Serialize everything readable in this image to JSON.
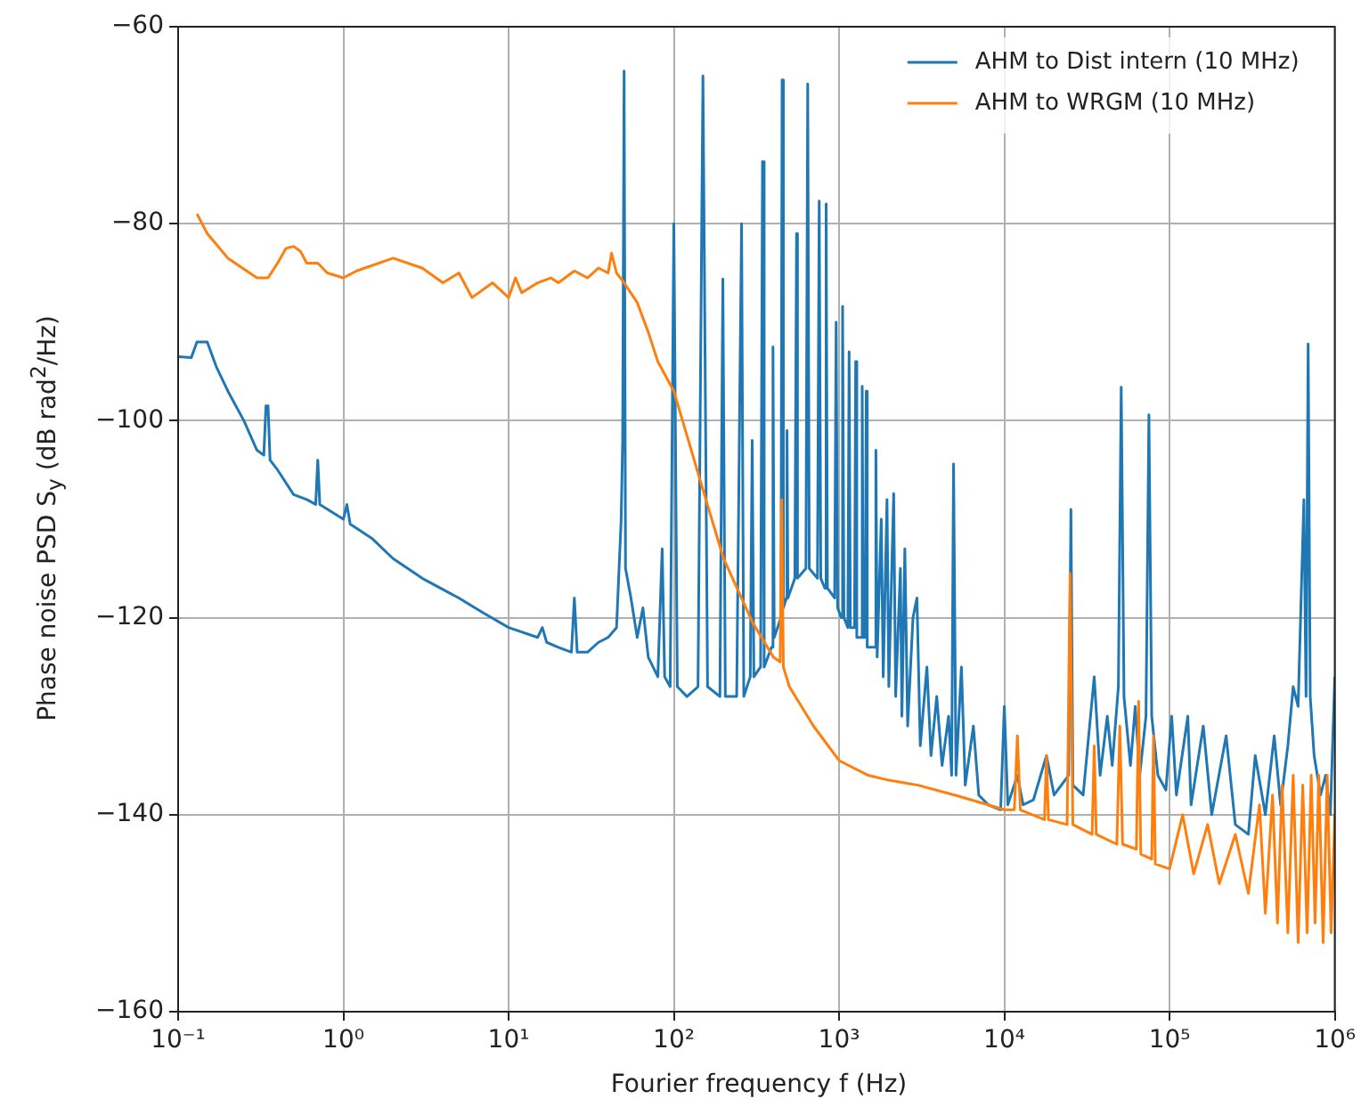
{
  "chart_data": {
    "type": "line",
    "xlabel": "Fourier frequency f (Hz)",
    "ylabel": "Phase noise PSD S$_{y}$ (dB rad$^{2}$/Hz)",
    "log": "x",
    "grid": true,
    "legend": "top right",
    "marker": "none",
    "line_style": "solid",
    "xlim": [
      0.1,
      1000000
    ],
    "xticks": [
      {
        "value": 0.1,
        "label": "10⁻¹"
      },
      {
        "value": 1,
        "label": "10⁰"
      },
      {
        "value": 10,
        "label": "10¹"
      },
      {
        "value": 100,
        "label": "10²"
      },
      {
        "value": 1000,
        "label": "10³"
      },
      {
        "value": 10000,
        "label": "10⁴"
      },
      {
        "value": 100000,
        "label": "10⁵"
      },
      {
        "value": 1000000,
        "label": "10⁶"
      }
    ],
    "ylim": [
      -160,
      -60
    ],
    "yticks": [
      -160,
      -140,
      -120,
      -100,
      -80,
      -60
    ],
    "series": [
      {
        "name": "AHM to Dist intern (10 MHz)",
        "color": "#1f77b4",
        "x": [
          0.1,
          0.12,
          0.13,
          0.15,
          0.17,
          0.2,
          0.25,
          0.3,
          0.33,
          0.34,
          0.35,
          0.36,
          0.4,
          0.5,
          0.6,
          0.68,
          0.7,
          0.72,
          1.0,
          1.05,
          1.1,
          1.5,
          2,
          3,
          5,
          7,
          10,
          15,
          16,
          17,
          20,
          24,
          25,
          26,
          30,
          35,
          40,
          45,
          48,
          49,
          50,
          51,
          55,
          60,
          65,
          70,
          80,
          85,
          88,
          95,
          100,
          105,
          120,
          140,
          150,
          160,
          190,
          198,
          205,
          240,
          257,
          265,
          290,
          298,
          305,
          335,
          344,
          352,
          390,
          398,
          405,
          445,
          452,
          460,
          480,
          484,
          490,
          540,
          553,
          560,
          630,
          646,
          660,
          740,
          758,
          775,
          820,
          835,
          850,
          940,
          960,
          980,
          1030,
          1050,
          1070,
          1130,
          1150,
          1170,
          1240,
          1260,
          1280,
          1360,
          1380,
          1400,
          1440,
          1460,
          1480,
          1650,
          1670,
          1700,
          1800,
          1850,
          1950,
          2000,
          2140,
          2200,
          2350,
          2400,
          2500,
          2600,
          2800,
          2960,
          3100,
          3400,
          3600,
          3900,
          4200,
          4600,
          4800,
          4930,
          5100,
          5500,
          5800,
          6500,
          7000,
          8000,
          9500,
          10000,
          10500,
          12000,
          13000,
          15000,
          18000,
          20000,
          24500,
          25300,
          26000,
          30000,
          35000,
          38000,
          42000,
          45000,
          49000,
          51000,
          53000,
          58000,
          62000,
          66000,
          72000,
          75000,
          78000,
          85000,
          95000,
          103000,
          110000,
          129000,
          135000,
          160000,
          180000,
          220000,
          250000,
          300000,
          330000,
          380000,
          430000,
          470000,
          520000,
          560000,
          600000,
          650000,
          670000,
          690000,
          710000,
          750000,
          820000,
          880000,
          940000,
          1000000
        ],
        "values": [
          -93.5,
          -93.6,
          -92,
          -92,
          -94.5,
          -97,
          -100,
          -103,
          -103.5,
          -98.5,
          -98.5,
          -104,
          -105,
          -107.5,
          -108,
          -108.5,
          -104,
          -108.5,
          -110,
          -108.5,
          -110.5,
          -112,
          -114,
          -116,
          -118,
          -119.5,
          -121,
          -122,
          -121,
          -122.5,
          -123,
          -123.5,
          -118,
          -123.5,
          -123.5,
          -122.5,
          -122,
          -121,
          -110,
          -102,
          -64.5,
          -115,
          -118,
          -122,
          -119,
          -124,
          -126,
          -113,
          -126,
          -127,
          -80,
          -127,
          -128,
          -127,
          -65,
          -127,
          -128,
          -85.6,
          -128,
          -128,
          -80,
          -128,
          -126,
          -102,
          -126,
          -125,
          -73.7,
          -125,
          -123,
          -92.5,
          -122,
          -120,
          -65.4,
          -119,
          -118,
          -101,
          -118,
          -116,
          -81,
          -116,
          -115,
          -65.8,
          -115,
          -116,
          -77.7,
          -116,
          -117,
          -78,
          -117,
          -118,
          -90,
          -119,
          -120,
          -88.4,
          -120,
          -121,
          -93,
          -121,
          -121,
          -94,
          -122,
          -122,
          -96.5,
          -122,
          -122,
          -97,
          -123,
          -123,
          -103,
          -124,
          -110,
          -126,
          -108,
          -127,
          -107.4,
          -128,
          -115,
          -130,
          -113,
          -131,
          -120,
          -118,
          -133,
          -125,
          -134,
          -128,
          -135,
          -130,
          -136,
          -104.4,
          -136,
          -125,
          -137,
          -131,
          -138,
          -139,
          -139.5,
          -129,
          -139,
          -136,
          -139,
          -138.5,
          -134,
          -138,
          -136,
          -109,
          -137,
          -138,
          -126,
          -136,
          -130,
          -135,
          -127,
          -96.6,
          -128,
          -135,
          -129,
          -136,
          -130,
          -99.4,
          -130,
          -136,
          -137.5,
          -130,
          -138,
          -130,
          -139,
          -131,
          -140,
          -132,
          -141,
          -142,
          -134,
          -140,
          -132,
          -139,
          -133,
          -127,
          -129,
          -108,
          -128,
          -92.2,
          -128,
          -134,
          -138,
          -136,
          -140,
          -126
        ]
      },
      {
        "name": "AHM to WRGM (10 MHz)",
        "color": "#ff7f0e",
        "x": [
          0.13,
          0.15,
          0.2,
          0.3,
          0.35,
          0.4,
          0.45,
          0.5,
          0.55,
          0.6,
          0.7,
          0.8,
          1.0,
          1.2,
          2,
          3,
          4,
          5,
          6,
          8,
          10,
          11,
          12,
          15,
          18,
          20,
          25,
          30,
          35,
          40,
          42,
          45,
          50,
          60,
          70,
          80,
          100,
          150,
          200,
          300,
          400,
          440,
          450,
          460,
          500,
          700,
          1000,
          1500,
          2000,
          3000,
          5000,
          8000,
          10000,
          11500,
          12000,
          12500,
          17500,
          18000,
          18500,
          24000,
          25000,
          26000,
          34000,
          35000,
          36000,
          48000,
          50000,
          52000,
          63000,
          65000,
          67000,
          78000,
          80000,
          82000,
          100000,
          120000,
          140000,
          170000,
          200000,
          250000,
          300000,
          350000,
          380000,
          420000,
          450000,
          480000,
          520000,
          560000,
          600000,
          640000,
          680000,
          720000,
          760000,
          800000,
          850000,
          900000,
          950000,
          1000000
        ],
        "values": [
          -79,
          -81,
          -83.5,
          -85.5,
          -85.5,
          -84,
          -82.5,
          -82.3,
          -82.8,
          -84,
          -84,
          -85,
          -85.5,
          -84.8,
          -83.5,
          -84.5,
          -86,
          -85,
          -87.5,
          -86,
          -87.5,
          -85.5,
          -87,
          -86,
          -85.5,
          -86,
          -84.8,
          -85.5,
          -84.5,
          -85,
          -83,
          -85,
          -86,
          -88,
          -91,
          -94,
          -97,
          -107,
          -114,
          -120.5,
          -124,
          -124.5,
          -108,
          -125,
          -127,
          -131,
          -134.5,
          -136,
          -136.5,
          -137,
          -138,
          -139,
          -139.5,
          -139.5,
          -132,
          -139.5,
          -140.5,
          -134,
          -140.5,
          -141,
          -115.5,
          -141,
          -142,
          -133,
          -142,
          -143,
          -131,
          -143,
          -143.5,
          -128.5,
          -144,
          -144.5,
          -132,
          -145,
          -145.5,
          -140,
          -146,
          -141,
          -147,
          -142,
          -148,
          -139,
          -150,
          -138,
          -151,
          -137,
          -152,
          -136,
          -153,
          -137,
          -152,
          -136,
          -151,
          -136,
          -153,
          -136,
          -152,
          -140
        ]
      }
    ]
  }
}
